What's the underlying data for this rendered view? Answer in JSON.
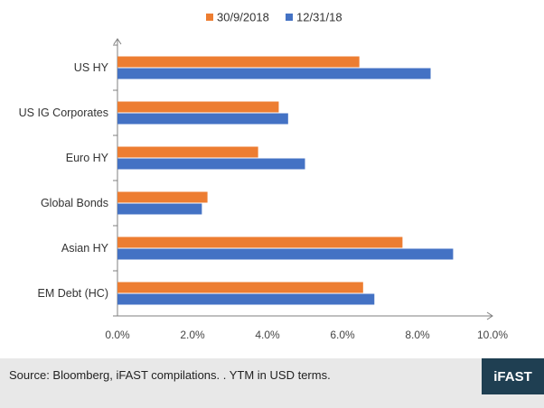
{
  "chart_data": {
    "type": "bar",
    "orientation": "horizontal",
    "categories": [
      "US HY",
      "US IG Corporates",
      "Euro HY",
      "Global Bonds",
      "Asian HY",
      "EM Debt (HC)"
    ],
    "series": [
      {
        "name": "30/9/2018",
        "color": "#ed7d31",
        "values": [
          6.45,
          4.3,
          3.75,
          2.4,
          7.6,
          6.55
        ]
      },
      {
        "name": "12/31/18",
        "color": "#4472c4",
        "values": [
          8.35,
          4.55,
          5.0,
          2.25,
          8.95,
          6.85
        ]
      }
    ],
    "xlim": [
      0,
      10
    ],
    "x_ticks": [
      "0.0%",
      "2.0%",
      "4.0%",
      "6.0%",
      "8.0%",
      "10.0%"
    ],
    "legend_position": "top-center",
    "grid": false
  },
  "footer": {
    "source": "Source: Bloomberg, iFAST compilations. . YTM in USD terms.",
    "logo": "iFAST"
  },
  "colors": {
    "footer_bg": "#e8e8e8",
    "logo_bg": "#1f3f52"
  }
}
